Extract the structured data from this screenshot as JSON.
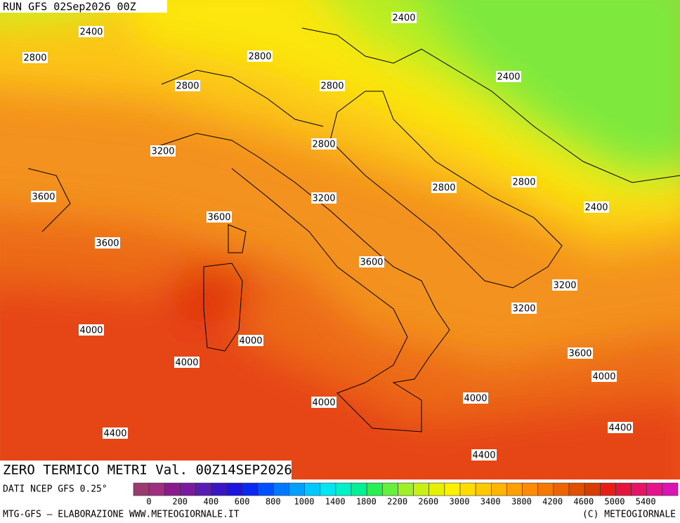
{
  "header": {
    "run": "RUN GFS 02Sep2026 00Z"
  },
  "contour_labels": [
    2400,
    2400,
    2800,
    2800,
    2800,
    2800,
    2400,
    3200,
    2800,
    3600,
    3200,
    2800,
    2800,
    2400,
    3600,
    3600,
    3600,
    3200,
    3200,
    4000,
    4000,
    4000,
    3600,
    4000,
    4000,
    4000,
    4400,
    4400,
    4400
  ],
  "title": "ZERO TERMICO METRI Val. 00Z14SEP2026",
  "source": "DATI NCEP GFS 0.25°",
  "colorbar": {
    "labels": [
      0,
      200,
      400,
      600,
      800,
      1000,
      1400,
      1800,
      2200,
      2600,
      3000,
      3400,
      3800,
      4200,
      4600,
      5000,
      5400
    ],
    "colors": [
      "#9b3a6e",
      "#a0307f",
      "#8c1a8c",
      "#7a1aa0",
      "#5a1ab4",
      "#3c14c8",
      "#1e14dc",
      "#0a28f0",
      "#0050ff",
      "#0078ff",
      "#00a0ff",
      "#00c8ff",
      "#00e6f0",
      "#00f0c8",
      "#00f096",
      "#28f050",
      "#64f03c",
      "#a0f028",
      "#c8f014",
      "#e6f000",
      "#fff000",
      "#ffdc00",
      "#ffc800",
      "#ffb400",
      "#ffa000",
      "#ff8c00",
      "#f57800",
      "#eb6400",
      "#e15000",
      "#d73c00",
      "#e61e14",
      "#e6143c",
      "#e61464",
      "#e6148c",
      "#dc14b4"
    ]
  },
  "footer": {
    "left": "MTG-GFS — ELABORAZIONE WWW.METEOGIORNALE.IT",
    "right": "(C) METEOGIORNALE"
  }
}
